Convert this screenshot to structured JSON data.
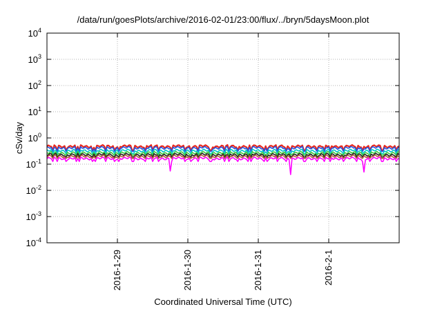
{
  "chart_data": {
    "type": "line",
    "title": "/data/run/goesPlots/archive/2016-02-01/23:00/flux/../bryn/5daysMoon.plot",
    "xlabel": "Coordinated Universal Time (UTC)",
    "ylabel": "cSv/day",
    "yscale": "log",
    "ylim": [
      0.0001,
      10000
    ],
    "y_ticks": [
      {
        "value": 0.0001,
        "base": "10",
        "exp": "-4"
      },
      {
        "value": 0.001,
        "base": "10",
        "exp": "-3"
      },
      {
        "value": 0.01,
        "base": "10",
        "exp": "-2"
      },
      {
        "value": 0.1,
        "base": "10",
        "exp": "-1"
      },
      {
        "value": 1,
        "base": "10",
        "exp": "0"
      },
      {
        "value": 10,
        "base": "10",
        "exp": "1"
      },
      {
        "value": 100,
        "base": "10",
        "exp": "2"
      },
      {
        "value": 1000,
        "base": "10",
        "exp": "3"
      },
      {
        "value": 10000,
        "base": "10",
        "exp": "4"
      }
    ],
    "xlim": [
      "2016-01-28 00:00",
      "2016-02-02 00:00"
    ],
    "x_ticks": [
      {
        "value": "2016-01-29 00:00",
        "label": "2016-1-29"
      },
      {
        "value": "2016-01-30 00:00",
        "label": "2016-1-30"
      },
      {
        "value": "2016-01-31 00:00",
        "label": "2016-1-31"
      },
      {
        "value": "2016-02-01 00:00",
        "label": "2016-2-1"
      }
    ],
    "grid": true,
    "legend": false,
    "series": [
      {
        "color": "#e8261c",
        "base": 0.48,
        "dip": 0.28
      },
      {
        "color": "#2255e0",
        "base": 0.42,
        "dip": 0.26
      },
      {
        "color": "#00c8c8",
        "base": 0.33,
        "dip": 0.22
      },
      {
        "color": "#3cc83c",
        "base": 0.27,
        "dip": 0.2
      },
      {
        "color": "#202020",
        "base": 0.23,
        "dip": 0.17
      },
      {
        "color": "#b45a3c",
        "base": 0.2,
        "dip": 0.15
      },
      {
        "color": "#ff00ff",
        "base": 0.165,
        "dip": 0.11
      }
    ],
    "deep_dips": [
      {
        "time": "2016-01-29 18:00",
        "value": 0.055
      },
      {
        "time": "2016-01-31 11:00",
        "value": 0.04
      },
      {
        "time": "2016-02-01 12:00",
        "value": 0.05
      }
    ]
  }
}
